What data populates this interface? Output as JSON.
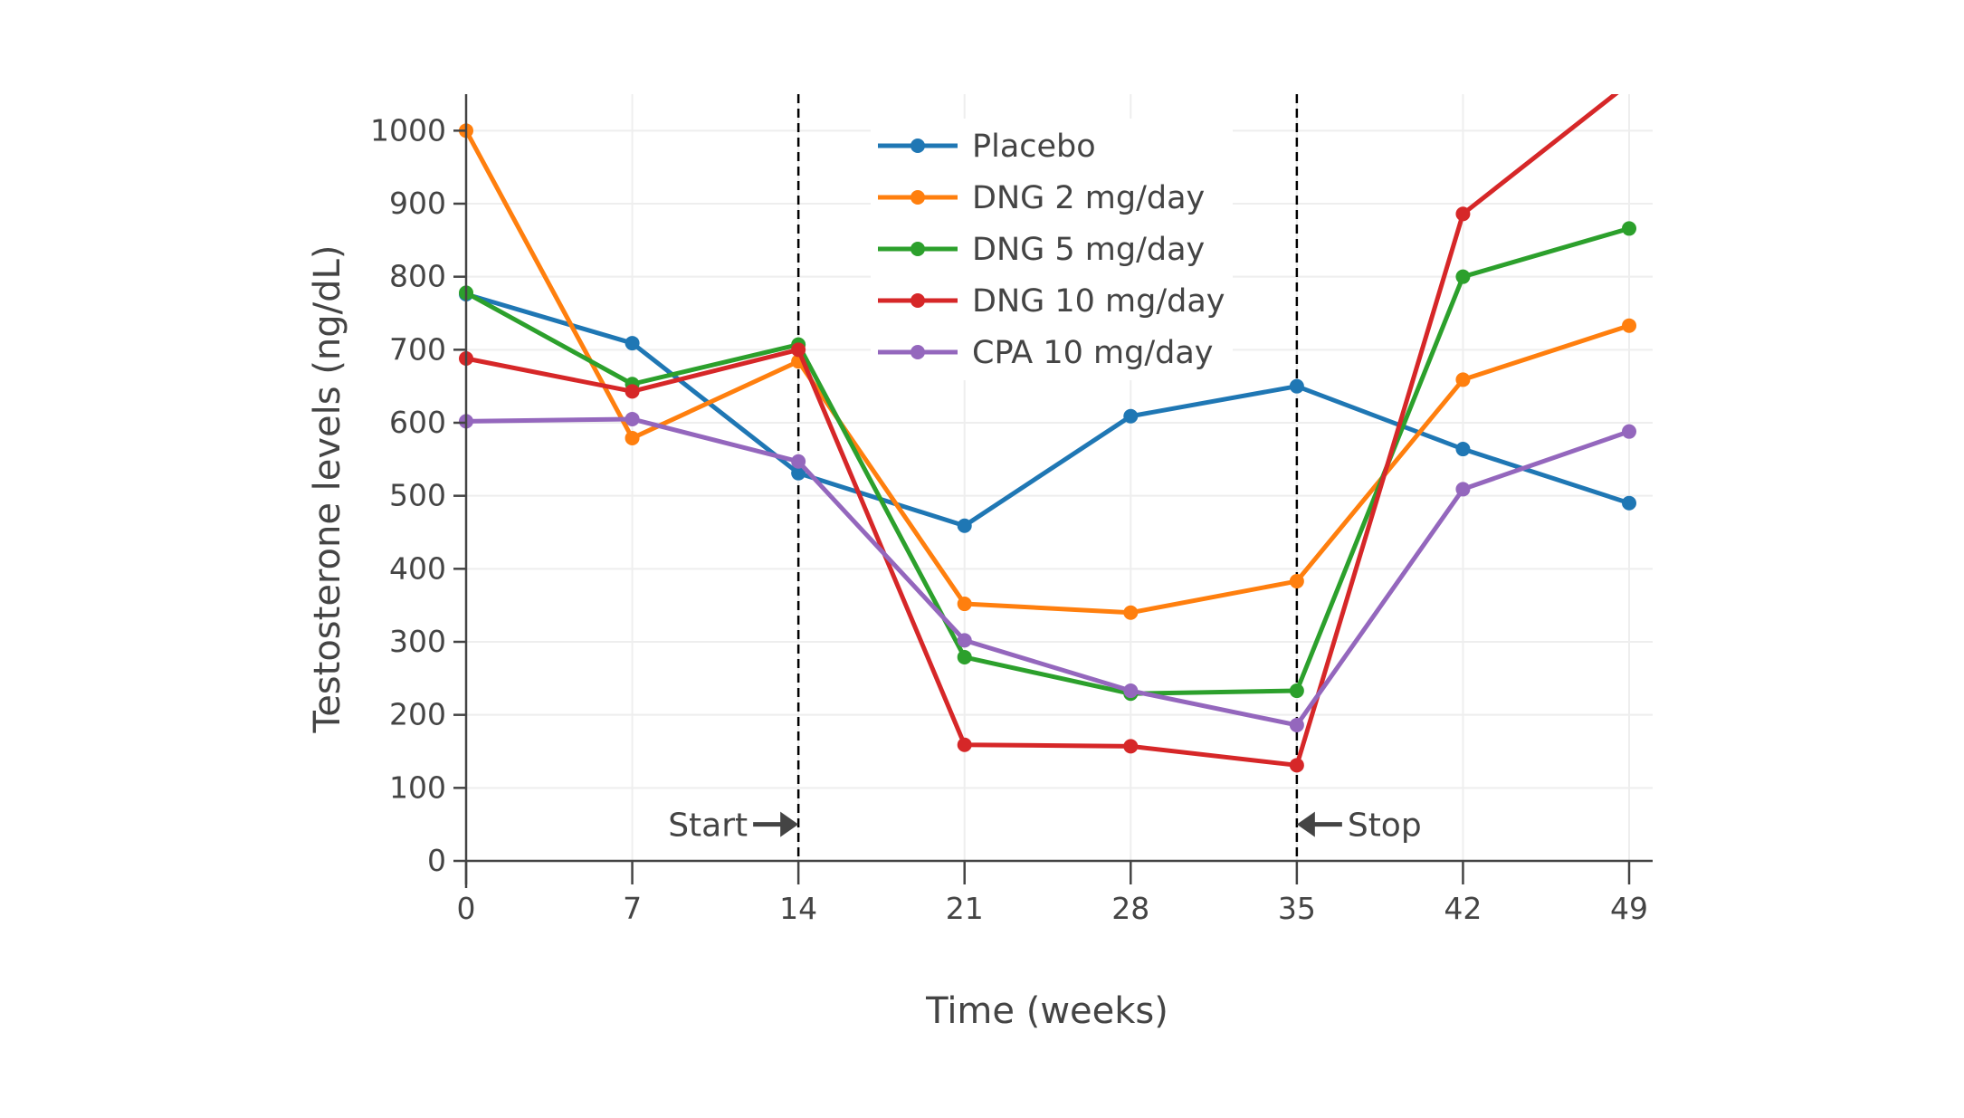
{
  "chart_data": {
    "type": "line",
    "title": "",
    "xlabel": "Time (weeks)",
    "ylabel": "Testosterone levels (ng/dL)",
    "x": [
      0,
      7,
      14,
      21,
      28,
      35,
      42,
      49
    ],
    "xticks": [
      "0",
      "7",
      "14",
      "21",
      "28",
      "35",
      "42",
      "49"
    ],
    "yticks": [
      "0",
      "100",
      "200",
      "300",
      "400",
      "500",
      "600",
      "700",
      "800",
      "900",
      "1000"
    ],
    "xlim": [
      0,
      49
    ],
    "ylim": [
      0,
      1050
    ],
    "grid": true,
    "legend_placement": "top-center",
    "series": [
      {
        "name": "Placebo",
        "color": "#1f77b4",
        "values": [
          776,
          709,
          531,
          459,
          609,
          650,
          564,
          490
        ]
      },
      {
        "name": "DNG 2 mg/day",
        "color": "#ff7f0e",
        "values": [
          1000,
          579,
          684,
          352,
          340,
          383,
          659,
          733
        ]
      },
      {
        "name": "DNG 5 mg/day",
        "color": "#2ca02c",
        "values": [
          778,
          653,
          707,
          279,
          229,
          233,
          800,
          866
        ]
      },
      {
        "name": "DNG 10 mg/day",
        "color": "#d62728",
        "values": [
          688,
          643,
          700,
          159,
          157,
          131,
          886,
          1065
        ]
      },
      {
        "name": "CPA 10 mg/day",
        "color": "#9467bd",
        "values": [
          602,
          605,
          547,
          302,
          233,
          186,
          509,
          588
        ]
      }
    ],
    "annotations": [
      {
        "text": "Start",
        "x": 14,
        "y": 50,
        "arrow": "right",
        "vline": true
      },
      {
        "text": "Stop",
        "x": 35,
        "y": 50,
        "arrow": "left",
        "vline": true
      }
    ]
  }
}
